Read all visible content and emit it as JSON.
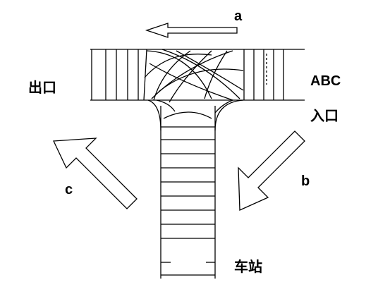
{
  "labels": {
    "exit": "出口",
    "abc": "ABC",
    "entrance": "入口",
    "station": "车站",
    "arrow_a": "a",
    "arrow_b": "b",
    "arrow_c": "c"
  },
  "colors": {
    "line": "#000000",
    "background": "#ffffff"
  }
}
